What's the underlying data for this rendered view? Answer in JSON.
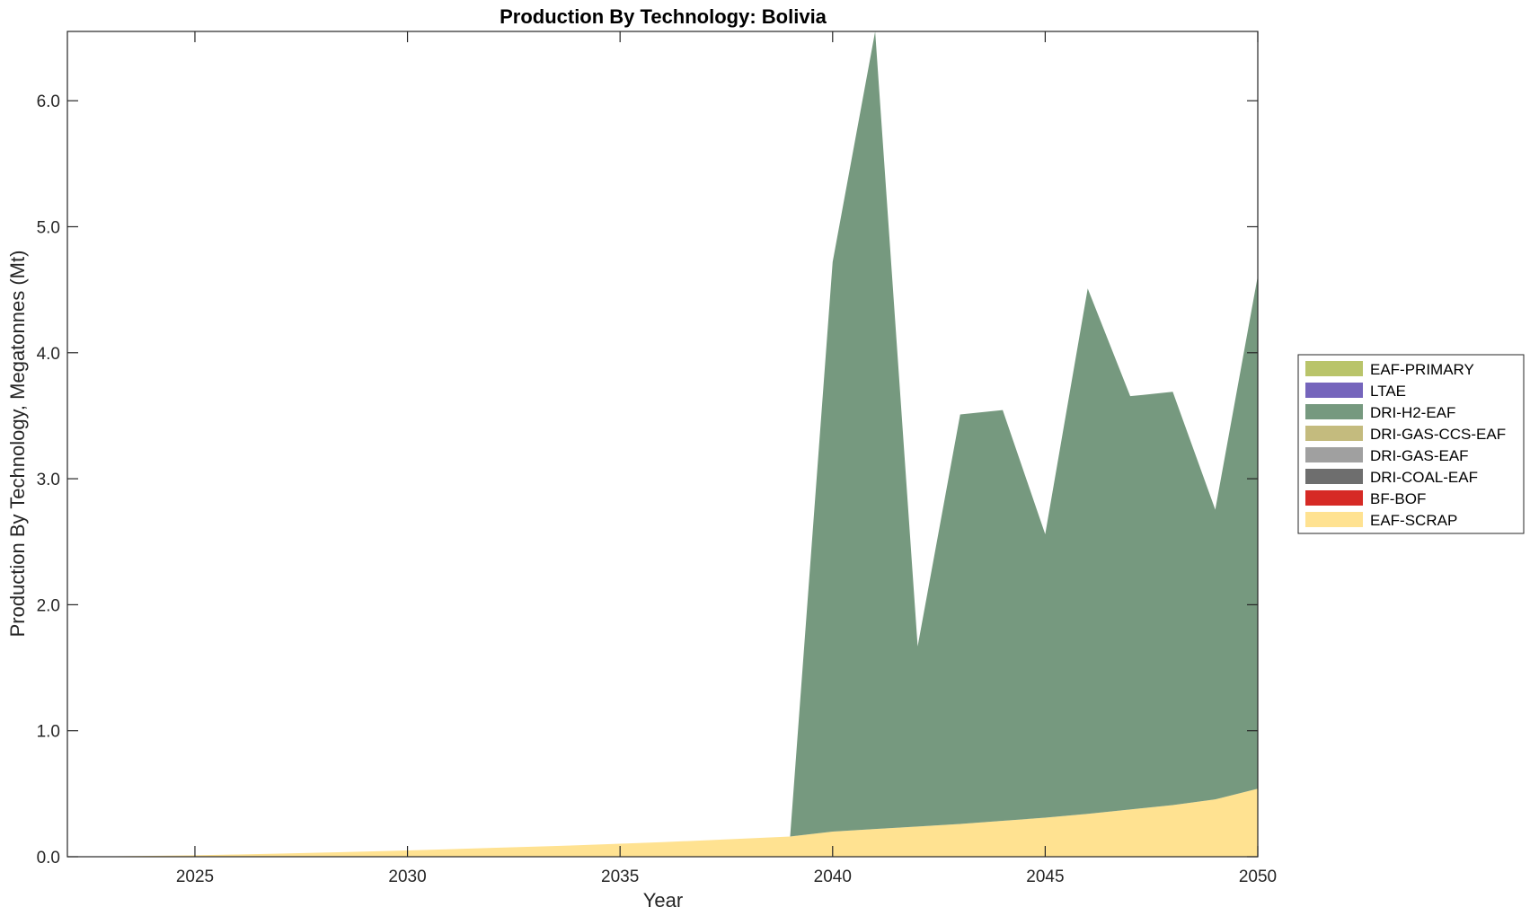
{
  "chart_data": {
    "type": "area",
    "stacked": true,
    "title": "Production By Technology: Bolivia",
    "xlabel": "Year",
    "ylabel": "Production By Technology, Megatonnes (Mt)",
    "xlim": [
      2022,
      2050
    ],
    "ylim": [
      0,
      6.55
    ],
    "x_ticks": [
      2025,
      2030,
      2035,
      2040,
      2045,
      2050
    ],
    "x_tick_labels": [
      "2025",
      "2030",
      "2035",
      "2040",
      "2045",
      "2050"
    ],
    "y_ticks": [
      0,
      1,
      2,
      3,
      4,
      5,
      6
    ],
    "y_tick_labels": [
      "0.0",
      "1.0",
      "2.0",
      "3.0",
      "4.0",
      "5.0",
      "6.0"
    ],
    "legend_position": "right",
    "x": [
      2022,
      2023,
      2024,
      2025,
      2026,
      2027,
      2028,
      2029,
      2030,
      2031,
      2032,
      2033,
      2034,
      2035,
      2036,
      2037,
      2038,
      2039,
      2040,
      2041,
      2042,
      2043,
      2044,
      2045,
      2046,
      2047,
      2048,
      2049,
      2050
    ],
    "series": [
      {
        "name": "EAF-SCRAP",
        "color": "#FFE291",
        "values": [
          0.0,
          0.003,
          0.007,
          0.012,
          0.018,
          0.025,
          0.033,
          0.041,
          0.05,
          0.06,
          0.07,
          0.08,
          0.091,
          0.103,
          0.116,
          0.13,
          0.145,
          0.16,
          0.2,
          0.22,
          0.24,
          0.26,
          0.285,
          0.31,
          0.34,
          0.375,
          0.41,
          0.455,
          0.54
        ]
      },
      {
        "name": "BF-BOF",
        "color": "#D62A25",
        "values": [
          0,
          0,
          0,
          0,
          0,
          0,
          0,
          0,
          0,
          0,
          0,
          0,
          0,
          0,
          0,
          0,
          0,
          0,
          0,
          0,
          0,
          0,
          0,
          0,
          0,
          0,
          0,
          0,
          0
        ]
      },
      {
        "name": "DRI-COAL-EAF",
        "color": "#6E6E6E",
        "values": [
          0,
          0,
          0,
          0,
          0,
          0,
          0,
          0,
          0,
          0,
          0,
          0,
          0,
          0,
          0,
          0,
          0,
          0,
          0,
          0,
          0,
          0,
          0,
          0,
          0,
          0,
          0,
          0,
          0
        ]
      },
      {
        "name": "DRI-GAS-EAF",
        "color": "#A0A0A0",
        "values": [
          0,
          0,
          0,
          0,
          0,
          0,
          0,
          0,
          0,
          0,
          0,
          0,
          0,
          0,
          0,
          0,
          0,
          0,
          0,
          0,
          0,
          0,
          0,
          0,
          0,
          0,
          0,
          0,
          0
        ]
      },
      {
        "name": "DRI-GAS-CCS-EAF",
        "color": "#C4BB7E",
        "values": [
          0,
          0,
          0,
          0,
          0,
          0,
          0,
          0,
          0,
          0,
          0,
          0,
          0,
          0,
          0,
          0,
          0,
          0,
          0,
          0,
          0,
          0,
          0,
          0,
          0,
          0,
          0,
          0,
          0
        ]
      },
      {
        "name": "DRI-H2-EAF",
        "color": "#76997F",
        "values": [
          0,
          0,
          0,
          0,
          0,
          0,
          0,
          0,
          0,
          0,
          0,
          0,
          0,
          0,
          0,
          0,
          0,
          0,
          4.52,
          6.33,
          1.43,
          3.25,
          3.26,
          2.25,
          4.17,
          3.28,
          3.28,
          2.3,
          4.07
        ]
      },
      {
        "name": "LTAE",
        "color": "#7565BC",
        "values": [
          0,
          0,
          0,
          0,
          0,
          0,
          0,
          0,
          0,
          0,
          0,
          0,
          0,
          0,
          0,
          0,
          0,
          0,
          0,
          0,
          0,
          0,
          0,
          0,
          0,
          0,
          0,
          0,
          0
        ]
      },
      {
        "name": "EAF-PRIMARY",
        "color": "#B9C46A",
        "values": [
          0,
          0,
          0,
          0,
          0,
          0,
          0,
          0,
          0,
          0,
          0,
          0,
          0,
          0,
          0,
          0,
          0,
          0,
          0,
          0,
          0,
          0,
          0,
          0,
          0,
          0,
          0,
          0,
          0
        ]
      }
    ],
    "legend_order": [
      "EAF-PRIMARY",
      "LTAE",
      "DRI-H2-EAF",
      "DRI-GAS-CCS-EAF",
      "DRI-GAS-EAF",
      "DRI-COAL-EAF",
      "BF-BOF",
      "EAF-SCRAP"
    ]
  }
}
